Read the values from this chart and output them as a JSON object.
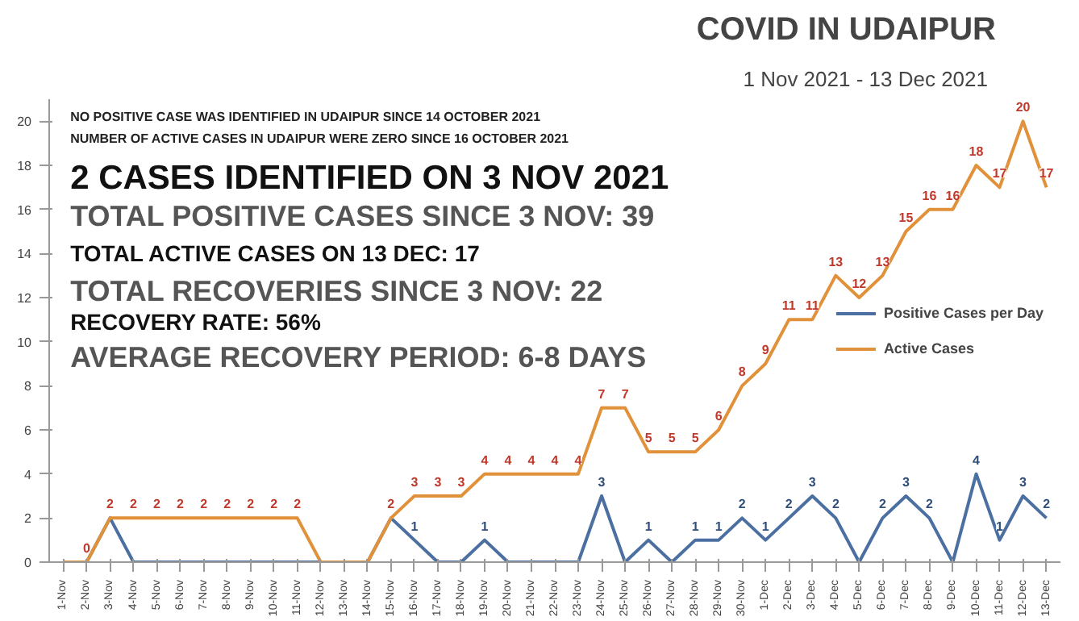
{
  "chart_data": {
    "type": "line",
    "title": "COVID IN UDAIPUR",
    "subtitle": "1 Nov 2021 - 13 Dec 2021",
    "categories": [
      "1-Nov",
      "2-Nov",
      "3-Nov",
      "4-Nov",
      "5-Nov",
      "6-Nov",
      "7-Nov",
      "8-Nov",
      "9-Nov",
      "10-Nov",
      "11-Nov",
      "12-Nov",
      "13-Nov",
      "14-Nov",
      "15-Nov",
      "16-Nov",
      "17-Nov",
      "18-Nov",
      "19-Nov",
      "20-Nov",
      "21-Nov",
      "22-Nov",
      "23-Nov",
      "24-Nov",
      "25-Nov",
      "26-Nov",
      "27-Nov",
      "28-Nov",
      "29-Nov",
      "30-Nov",
      "1-Dec",
      "2-Dec",
      "3-Dec",
      "4-Dec",
      "5-Dec",
      "6-Dec",
      "7-Dec",
      "8-Dec",
      "9-Dec",
      "10-Dec",
      "11-Dec",
      "12-Dec",
      "13-Dec"
    ],
    "series": [
      {
        "name": "Positive Cases per Day",
        "color": "#4a6fa0",
        "values": [
          0,
          0,
          2,
          0,
          0,
          0,
          0,
          0,
          0,
          0,
          0,
          0,
          0,
          0,
          2,
          1,
          0,
          0,
          1,
          0,
          0,
          0,
          0,
          3,
          0,
          1,
          0,
          1,
          1,
          2,
          1,
          2,
          3,
          2,
          0,
          2,
          3,
          2,
          0,
          4,
          1,
          3,
          2
        ],
        "value_labels": [
          null,
          "0",
          "2",
          null,
          null,
          null,
          null,
          null,
          null,
          null,
          null,
          null,
          null,
          null,
          null,
          "1",
          null,
          null,
          "1",
          null,
          null,
          null,
          null,
          "3",
          null,
          "1",
          null,
          "1",
          "1",
          "2",
          "1",
          "2",
          "3",
          "2",
          null,
          "2",
          "3",
          "2",
          null,
          "4",
          "1",
          "3",
          "2"
        ]
      },
      {
        "name": "Active Cases",
        "color": "#e0913a",
        "values": [
          0,
          0,
          2,
          2,
          2,
          2,
          2,
          2,
          2,
          2,
          2,
          0,
          0,
          0,
          2,
          3,
          3,
          3,
          4,
          4,
          4,
          4,
          4,
          7,
          7,
          5,
          5,
          5,
          6,
          8,
          9,
          11,
          11,
          13,
          12,
          13,
          15,
          16,
          16,
          18,
          17,
          20,
          17
        ],
        "value_labels": [
          null,
          "0",
          "2",
          "2",
          "2",
          "2",
          "2",
          "2",
          "2",
          "2",
          "2",
          null,
          null,
          null,
          "2",
          "3",
          "3",
          "3",
          "4",
          "4",
          "4",
          "4",
          "4",
          "7",
          "7",
          "5",
          "5",
          "5",
          "6",
          "8",
          "9",
          "11",
          "11",
          "13",
          "12",
          "13",
          "15",
          "16",
          "16",
          "18",
          "17",
          "20",
          "17"
        ]
      }
    ],
    "ylim": [
      0,
      21
    ],
    "yticks": [
      0,
      2,
      4,
      6,
      8,
      10,
      12,
      14,
      16,
      18,
      20
    ],
    "grid": false,
    "legend": "right",
    "annotations": [
      "NO POSITIVE CASE WAS IDENTIFIED IN UDAIPUR SINCE 14 OCTOBER 2021",
      "NUMBER OF ACTIVE CASES IN UDAIPUR WERE ZERO SINCE 16 OCTOBER 2021",
      "2 CASES IDENTIFIED ON 3 NOV 2021",
      "TOTAL POSITIVE CASES SINCE 3 NOV: 39",
      "TOTAL ACTIVE CASES ON 13 DEC: 17",
      "TOTAL RECOVERIES SINCE 3 NOV: 22",
      "RECOVERY RATE: 56%",
      "AVERAGE RECOVERY PERIOD: 6-8 DAYS"
    ]
  }
}
